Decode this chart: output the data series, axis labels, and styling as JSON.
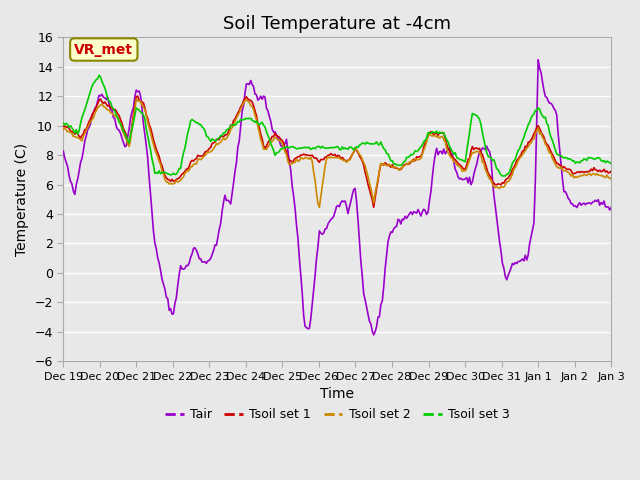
{
  "title": "Soil Temperature at -4cm",
  "xlabel": "Time",
  "ylabel": "Temperature (C)",
  "ylim": [
    -6,
    16
  ],
  "yticks": [
    -6,
    -4,
    -2,
    0,
    2,
    4,
    6,
    8,
    10,
    12,
    14,
    16
  ],
  "line_colors": {
    "Tair": "#9900cc",
    "Tsoil set 1": "#cc0000",
    "Tsoil set 2": "#cc8800",
    "Tsoil set 3": "#00cc00"
  },
  "line_widths": {
    "Tair": 1.2,
    "Tsoil set 1": 1.2,
    "Tsoil set 2": 1.2,
    "Tsoil set 3": 1.2
  },
  "annotation_text": "VR_met",
  "annotation_color": "#cc0000",
  "annotation_bbox_facecolor": "#ffffcc",
  "annotation_bbox_edgecolor": "#888800",
  "background_color": "#e8e8e8",
  "axes_facecolor": "#e8e8e8",
  "title_fontsize": 13,
  "label_fontsize": 10,
  "tick_positions": [
    0,
    1,
    2,
    3,
    4,
    5,
    6,
    7,
    8,
    9,
    10,
    11,
    12,
    13,
    14,
    15
  ],
  "tick_labels": [
    "Dec 19",
    "Dec 20",
    "Dec 21",
    "Dec 22",
    "Dec 23",
    "Dec 24",
    "Dec 25",
    "Dec 26",
    "Dec 27",
    "Dec 28",
    "Dec 29",
    "Dec 30",
    "Dec 31",
    "Jan 1",
    "Jan 2",
    "Jan 3"
  ],
  "n_points": 384
}
